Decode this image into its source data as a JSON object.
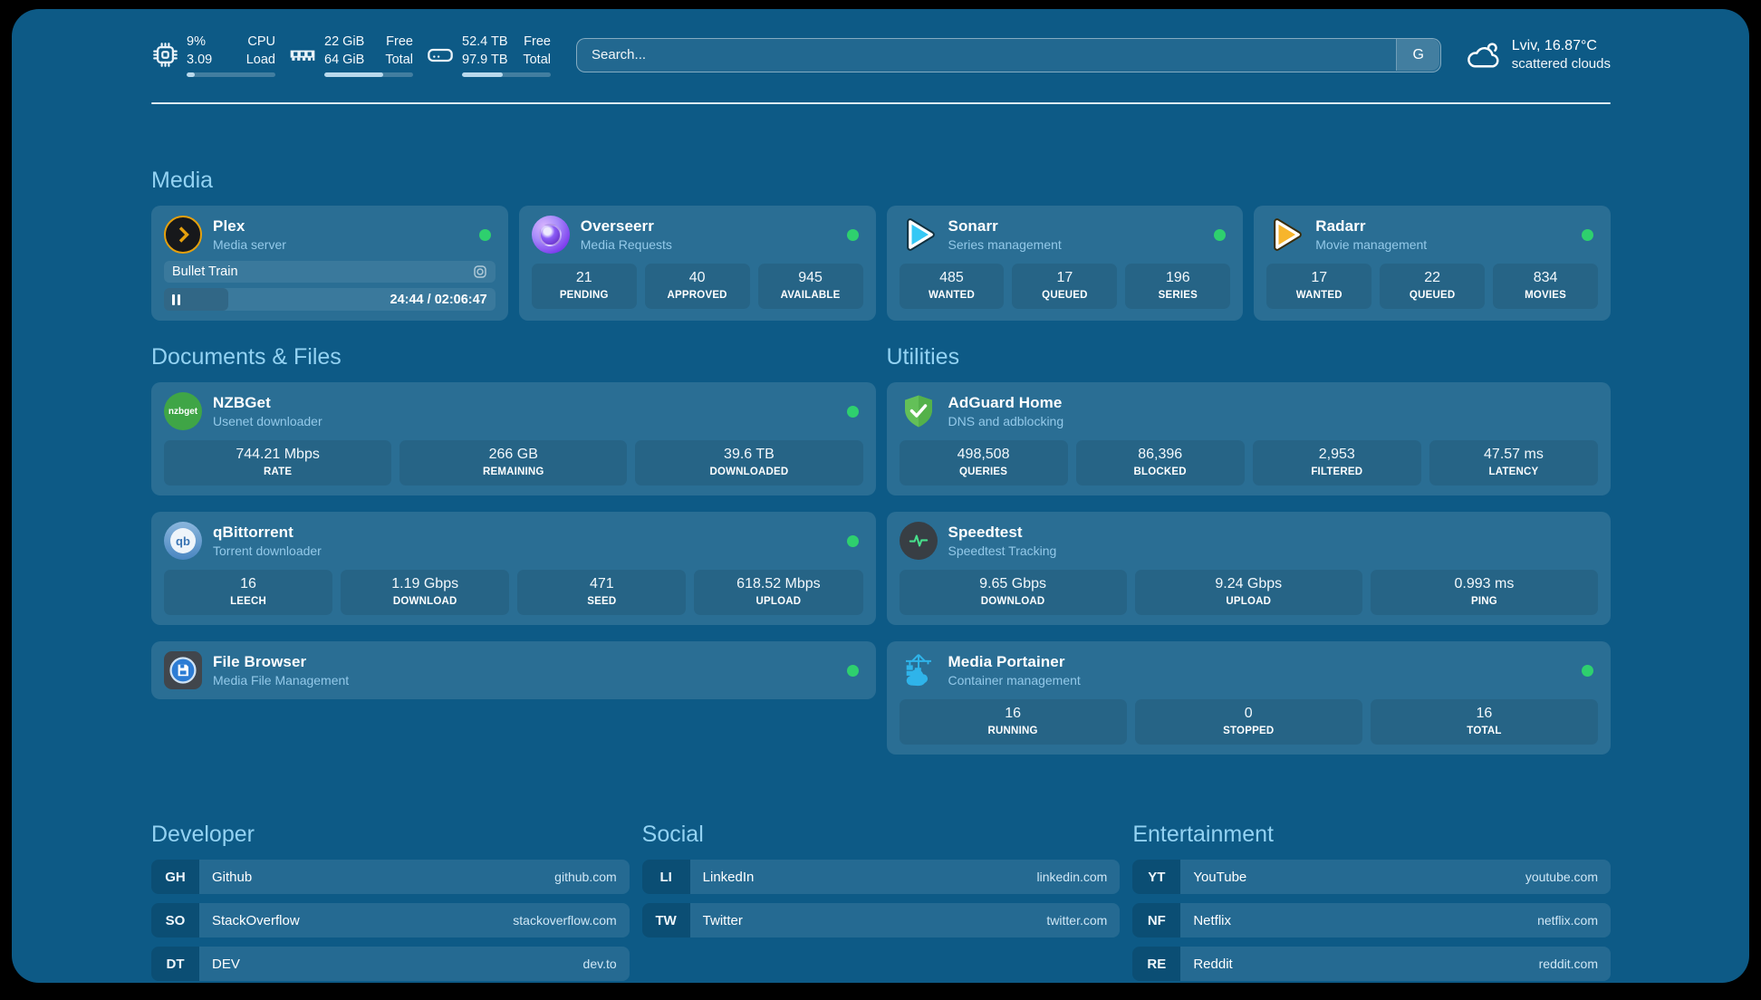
{
  "theme": {
    "page_bg": "#0d5a86",
    "heading": "#93d2f2",
    "status_online": "#2ed06e",
    "progress_fill": "#b9d9ec"
  },
  "header": {
    "stats": [
      {
        "id": "cpu",
        "icon": "cpu-icon",
        "rows": [
          {
            "value": "9%",
            "label": "CPU"
          },
          {
            "value": "3.09",
            "label": "Load"
          }
        ],
        "progress_percent": 9
      },
      {
        "id": "memory",
        "icon": "memory-icon",
        "rows": [
          {
            "value": "22 GiB",
            "label": "Free"
          },
          {
            "value": "64 GiB",
            "label": "Total"
          }
        ],
        "progress_percent": 66
      },
      {
        "id": "disk",
        "icon": "disk-icon",
        "rows": [
          {
            "value": "52.4 TB",
            "label": "Free"
          },
          {
            "value": "97.9 TB",
            "label": "Total"
          }
        ],
        "progress_percent": 46
      }
    ],
    "search": {
      "placeholder": "Search...",
      "provider_button": "G"
    },
    "weather": {
      "location": "Lviv, 16.87°C",
      "condition": "scattered clouds"
    }
  },
  "sections": {
    "media": {
      "title": "Media",
      "plex": {
        "title": "Plex",
        "subtitle": "Media server",
        "status": "online",
        "now_playing": "Bullet Train",
        "time": "24:44 / 02:06:47",
        "progress_percent": 19.5
      },
      "overseerr": {
        "title": "Overseerr",
        "subtitle": "Media Requests",
        "status": "online",
        "stats": [
          {
            "value": "21",
            "label": "PENDING"
          },
          {
            "value": "40",
            "label": "APPROVED"
          },
          {
            "value": "945",
            "label": "AVAILABLE"
          }
        ]
      },
      "sonarr": {
        "title": "Sonarr",
        "subtitle": "Series management",
        "status": "online",
        "stats": [
          {
            "value": "485",
            "label": "WANTED"
          },
          {
            "value": "17",
            "label": "QUEUED"
          },
          {
            "value": "196",
            "label": "SERIES"
          }
        ]
      },
      "radarr": {
        "title": "Radarr",
        "subtitle": "Movie management",
        "status": "online",
        "stats": [
          {
            "value": "17",
            "label": "WANTED"
          },
          {
            "value": "22",
            "label": "QUEUED"
          },
          {
            "value": "834",
            "label": "MOVIES"
          }
        ]
      }
    },
    "documents": {
      "title": "Documents & Files",
      "nzbget": {
        "title": "NZBGet",
        "subtitle": "Usenet downloader",
        "status": "online",
        "icon_text": "nzbget",
        "stats": [
          {
            "value": "744.21 Mbps",
            "label": "RATE"
          },
          {
            "value": "266 GB",
            "label": "REMAINING"
          },
          {
            "value": "39.6 TB",
            "label": "DOWNLOADED"
          }
        ]
      },
      "qbittorrent": {
        "title": "qBittorrent",
        "subtitle": "Torrent downloader",
        "status": "online",
        "icon_text": "qb",
        "stats": [
          {
            "value": "16",
            "label": "LEECH"
          },
          {
            "value": "1.19 Gbps",
            "label": "DOWNLOAD"
          },
          {
            "value": "471",
            "label": "SEED"
          },
          {
            "value": "618.52 Mbps",
            "label": "UPLOAD"
          }
        ]
      },
      "filebrowser": {
        "title": "File Browser",
        "subtitle": "Media File Management",
        "status": "online"
      }
    },
    "utilities": {
      "title": "Utilities",
      "adguard": {
        "title": "AdGuard Home",
        "subtitle": "DNS and adblocking",
        "stats": [
          {
            "value": "498,508",
            "label": "QUERIES"
          },
          {
            "value": "86,396",
            "label": "BLOCKED"
          },
          {
            "value": "2,953",
            "label": "FILTERED"
          },
          {
            "value": "47.57 ms",
            "label": "LATENCY"
          }
        ]
      },
      "speedtest": {
        "title": "Speedtest",
        "subtitle": "Speedtest Tracking",
        "stats": [
          {
            "value": "9.65 Gbps",
            "label": "DOWNLOAD"
          },
          {
            "value": "9.24 Gbps",
            "label": "UPLOAD"
          },
          {
            "value": "0.993 ms",
            "label": "PING"
          }
        ]
      },
      "portainer": {
        "title": "Media Portainer",
        "subtitle": "Container management",
        "status": "online",
        "stats": [
          {
            "value": "16",
            "label": "RUNNING"
          },
          {
            "value": "0",
            "label": "STOPPED"
          },
          {
            "value": "16",
            "label": "TOTAL"
          }
        ]
      }
    },
    "bookmarks": {
      "developer": {
        "title": "Developer",
        "items": [
          {
            "abbr": "GH",
            "name": "Github",
            "url": "github.com"
          },
          {
            "abbr": "SO",
            "name": "StackOverflow",
            "url": "stackoverflow.com"
          },
          {
            "abbr": "DT",
            "name": "DEV",
            "url": "dev.to"
          }
        ]
      },
      "social": {
        "title": "Social",
        "items": [
          {
            "abbr": "LI",
            "name": "LinkedIn",
            "url": "linkedin.com"
          },
          {
            "abbr": "TW",
            "name": "Twitter",
            "url": "twitter.com"
          }
        ]
      },
      "entertainment": {
        "title": "Entertainment",
        "items": [
          {
            "abbr": "YT",
            "name": "YouTube",
            "url": "youtube.com"
          },
          {
            "abbr": "NF",
            "name": "Netflix",
            "url": "netflix.com"
          },
          {
            "abbr": "RE",
            "name": "Reddit",
            "url": "reddit.com"
          }
        ]
      }
    }
  }
}
